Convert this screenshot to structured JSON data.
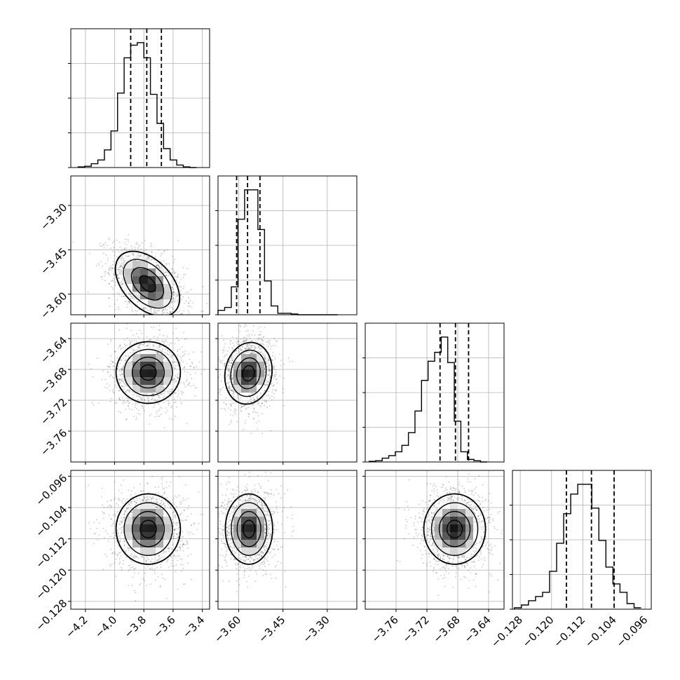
{
  "chart_data": {
    "type": "corner",
    "title": "",
    "grid": true,
    "quantile_lines": "dashed",
    "parameters": [
      {
        "name": "",
        "range": [
          -4.3,
          -3.35
        ],
        "ticks": [
          -4.2,
          -4.0,
          -3.8,
          -3.6,
          -3.4
        ],
        "tick_labels": [
          "−4.2",
          "−4.0",
          "−3.8",
          "−3.6",
          "−3.4"
        ],
        "quantiles": [
          -3.89,
          -3.78,
          -3.68
        ]
      },
      {
        "name": "",
        "range": [
          -3.67,
          -3.2
        ],
        "ticks": [
          -3.6,
          -3.45,
          -3.3
        ],
        "tick_labels": [
          "−3.60",
          "−3.45",
          "−3.30"
        ],
        "quantiles": [
          -3.607,
          -3.57,
          -3.528
        ]
      },
      {
        "name": "",
        "range": [
          -3.8,
          -3.62
        ],
        "ticks": [
          -3.76,
          -3.72,
          -3.68,
          -3.64
        ],
        "tick_labels": [
          "−3.76",
          "−3.72",
          "−3.68",
          "−3.64"
        ],
        "quantiles": [
          -3.703,
          -3.683,
          -3.666
        ]
      },
      {
        "name": "",
        "range": [
          -0.13,
          -0.0945
        ],
        "ticks": [
          -0.128,
          -0.12,
          -0.112,
          -0.104,
          -0.096
        ],
        "tick_labels": [
          "−0.128",
          "−0.120",
          "−0.112",
          "−0.104",
          "−0.096"
        ],
        "quantiles": [
          -0.1162,
          -0.1098,
          -0.104
        ]
      }
    ],
    "histograms": [
      {
        "param": 0,
        "bin_edges_start": -4.25,
        "bin_width": 0.045,
        "counts": [
          0.5,
          1,
          3,
          6,
          14,
          29,
          59,
          87,
          97,
          99,
          87,
          58,
          35,
          15,
          6,
          2,
          0.5,
          0
        ]
      },
      {
        "param": 1,
        "bin_edges_start": -3.67,
        "bin_width": 0.0225,
        "counts": [
          3,
          5,
          19,
          65,
          85,
          85,
          58,
          23,
          6,
          1,
          1,
          0.5,
          0,
          0,
          0,
          0,
          0,
          0
        ]
      },
      {
        "param": 2,
        "bin_edges_start": -3.795,
        "bin_width": 0.0085,
        "counts": [
          0.5,
          1,
          3,
          5,
          8,
          13,
          23,
          40,
          64,
          79,
          86,
          98,
          78,
          32,
          8,
          2,
          1,
          0
        ]
      },
      {
        "param": 3,
        "bin_edges_start": -0.1295,
        "bin_width": 0.0018,
        "counts": [
          1,
          3,
          6,
          9,
          12,
          27,
          47,
          68,
          82,
          89,
          89,
          72,
          49,
          30,
          18,
          12,
          4,
          1
        ]
      }
    ],
    "pairs": [
      {
        "x_param": 0,
        "y_param": 1,
        "mean": [
          -3.775,
          -3.565
        ],
        "sd": [
          0.11,
          0.055
        ],
        "rho": -0.45
      },
      {
        "x_param": 0,
        "y_param": 2,
        "mean": [
          -3.77,
          -3.684
        ],
        "sd": [
          0.11,
          0.02
        ],
        "rho": 0.0
      },
      {
        "x_param": 1,
        "y_param": 2,
        "mean": [
          -3.567,
          -3.685
        ],
        "sd": [
          0.04,
          0.02
        ],
        "rho": 0.1
      },
      {
        "x_param": 0,
        "y_param": 3,
        "mean": [
          -3.77,
          -0.1095
        ],
        "sd": [
          0.11,
          0.0045
        ],
        "rho": 0.0
      },
      {
        "x_param": 1,
        "y_param": 3,
        "mean": [
          -3.565,
          -0.1095
        ],
        "sd": [
          0.04,
          0.0045
        ],
        "rho": 0.0
      },
      {
        "x_param": 2,
        "y_param": 3,
        "mean": [
          -3.684,
          -0.1095
        ],
        "sd": [
          0.02,
          0.0045
        ],
        "rho": 0.0
      }
    ]
  }
}
